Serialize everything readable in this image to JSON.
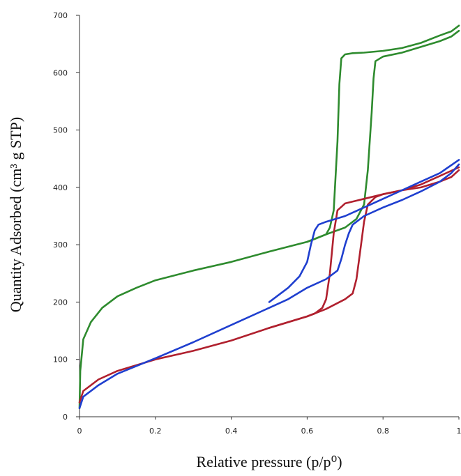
{
  "chart_data": {
    "type": "line",
    "xlabel": "Relative pressure (p/p⁰)",
    "ylabel": "Quantity Adsorbed (cm³  g STP)",
    "xlim": [
      0,
      1
    ],
    "ylim": [
      0,
      700
    ],
    "x_ticks": [
      "0",
      "0.2",
      "0.4",
      "0.6",
      "0.8",
      "1"
    ],
    "y_ticks": [
      "0",
      "100",
      "200",
      "300",
      "400",
      "500",
      "600",
      "700"
    ],
    "grid": false,
    "legend": "none",
    "series": [
      {
        "color": "#2e8b2e",
        "branches": [
          {
            "x": [
              0,
              0.002,
              0.01,
              0.03,
              0.06,
              0.1,
              0.15,
              0.2,
              0.3,
              0.4,
              0.5,
              0.6,
              0.65,
              0.7,
              0.73,
              0.75,
              0.76,
              0.77,
              0.775,
              0.78,
              0.8,
              0.85,
              0.9,
              0.95,
              0.98,
              1.0
            ],
            "y": [
              15,
              80,
              135,
              165,
              190,
              210,
              225,
              238,
              255,
              270,
              288,
              305,
              318,
              330,
              345,
              370,
              430,
              530,
              590,
              620,
              628,
              635,
              645,
              655,
              663,
              673
            ]
          },
          {
            "x": [
              1.0,
              0.98,
              0.95,
              0.9,
              0.85,
              0.8,
              0.75,
              0.72,
              0.7,
              0.69,
              0.685,
              0.68,
              0.67,
              0.66,
              0.65,
              0.62,
              0.6
            ],
            "y": [
              682,
              672,
              665,
              652,
              643,
              638,
              635,
              634,
              632,
              625,
              580,
              480,
              360,
              330,
              318,
              310,
              305
            ]
          }
        ]
      },
      {
        "color": "#b0202e",
        "branches": [
          {
            "x": [
              0,
              0.01,
              0.05,
              0.1,
              0.2,
              0.3,
              0.4,
              0.5,
              0.6,
              0.65,
              0.7,
              0.72,
              0.73,
              0.74,
              0.75,
              0.76,
              0.78,
              0.8,
              0.85,
              0.9,
              0.95,
              0.98,
              1.0
            ],
            "y": [
              25,
              45,
              65,
              80,
              100,
              115,
              133,
              155,
              175,
              188,
              205,
              215,
              240,
              290,
              340,
              370,
              383,
              388,
              395,
              400,
              410,
              418,
              430
            ]
          },
          {
            "x": [
              1.0,
              0.95,
              0.9,
              0.85,
              0.8,
              0.75,
              0.7,
              0.68,
              0.67,
              0.66,
              0.65,
              0.64,
              0.62,
              0.6,
              0.55,
              0.5
            ],
            "y": [
              435,
              420,
              405,
              395,
              388,
              380,
              372,
              360,
              320,
              250,
              205,
              190,
              180,
              175,
              165,
              155
            ]
          }
        ]
      },
      {
        "color": "#1f3fcf",
        "branches": [
          {
            "x": [
              0,
              0.01,
              0.05,
              0.1,
              0.2,
              0.3,
              0.4,
              0.5,
              0.55,
              0.6,
              0.65,
              0.68,
              0.69,
              0.7,
              0.71,
              0.72,
              0.75,
              0.8,
              0.85,
              0.9,
              0.95,
              0.98,
              1.0
            ],
            "y": [
              15,
              35,
              55,
              75,
              102,
              130,
              160,
              190,
              205,
              225,
              240,
              255,
              275,
              300,
              320,
              335,
              350,
              365,
              378,
              393,
              410,
              425,
              440
            ]
          },
          {
            "x": [
              1.0,
              0.95,
              0.9,
              0.85,
              0.8,
              0.75,
              0.7,
              0.65,
              0.63,
              0.62,
              0.61,
              0.6,
              0.58,
              0.55,
              0.5
            ],
            "y": [
              448,
              425,
              410,
              395,
              380,
              365,
              350,
              340,
              335,
              325,
              300,
              270,
              245,
              225,
              200
            ]
          }
        ]
      }
    ]
  }
}
